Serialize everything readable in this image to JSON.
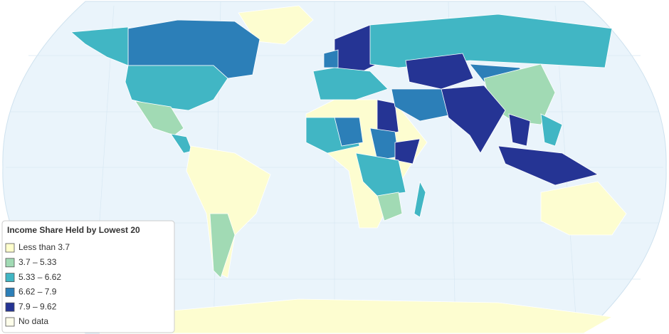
{
  "legend": {
    "title": "Income Share Held by Lowest 20",
    "items": [
      {
        "label": "Less than 3.7",
        "color": "#ffffcc"
      },
      {
        "label": "3.7 – 5.33",
        "color": "#a1dab4"
      },
      {
        "label": "5.33 – 6.62",
        "color": "#41b6c4"
      },
      {
        "label": "6.62 – 7.9",
        "color": "#2c7fb8"
      },
      {
        "label": "7.9 – 9.62",
        "color": "#253494"
      },
      {
        "label": "No data",
        "color": "#fdfdea"
      }
    ]
  }
}
